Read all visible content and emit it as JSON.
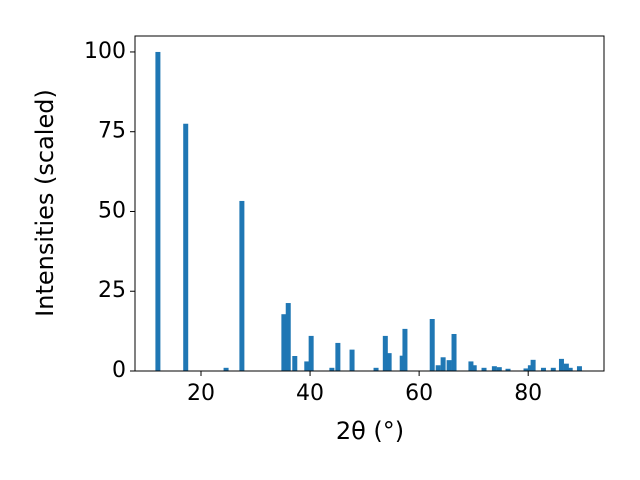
{
  "chart_data": {
    "type": "bar",
    "x": [
      12.1,
      17.2,
      24.6,
      27.5,
      35.2,
      36.0,
      37.2,
      39.4,
      40.2,
      44.0,
      45.1,
      47.7,
      52.1,
      53.8,
      54.5,
      56.9,
      57.4,
      62.4,
      63.5,
      64.4,
      65.5,
      66.4,
      69.5,
      70.1,
      71.9,
      73.8,
      74.7,
      76.3,
      79.6,
      80.4,
      80.9,
      82.8,
      84.6,
      86.1,
      87.0,
      87.7,
      89.4
    ],
    "values": [
      100,
      77.5,
      1,
      53.3,
      17.8,
      21.3,
      4.7,
      3,
      11,
      1,
      8.8,
      6.7,
      1,
      11,
      5.6,
      4.8,
      13.2,
      16.3,
      1.8,
      4.3,
      3.4,
      11.6,
      3,
      1.8,
      1,
      1.5,
      1.2,
      0.7,
      0.8,
      1.8,
      3.5,
      1,
      1,
      3.8,
      2.3,
      1,
      1.5
    ],
    "color": "#1f77b4",
    "xlabel": "2θ (°)",
    "ylabel": "Intensities (scaled)",
    "xlim": [
      7.9,
      93.9
    ],
    "xticks": [
      20,
      40,
      60,
      80
    ],
    "ylim": [
      0,
      105
    ],
    "yticks": [
      0,
      25,
      50,
      75,
      100
    ],
    "grid": false
  }
}
